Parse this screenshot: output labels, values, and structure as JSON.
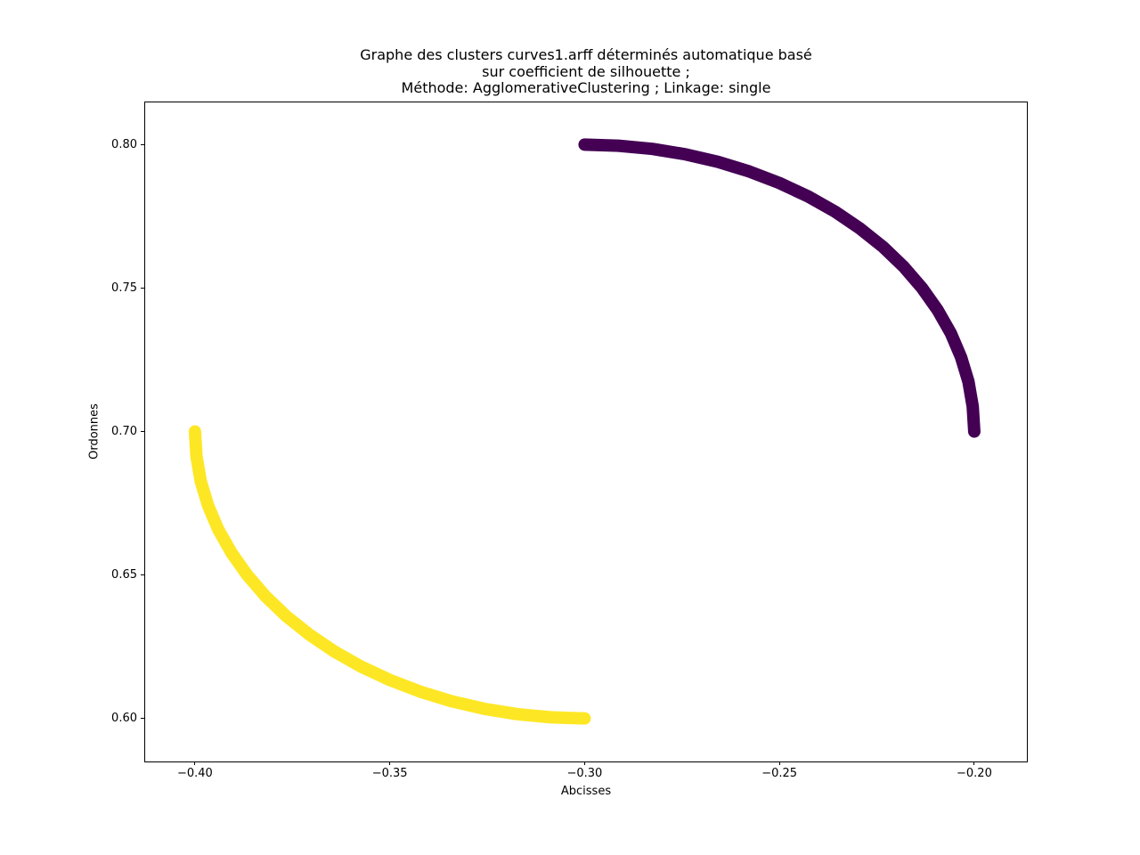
{
  "chart_data": {
    "type": "scatter",
    "title_lines": [
      "Graphe des clusters curves1.arff déterminés automatique basé",
      "sur coefficient de silhouette ;",
      "Méthode: AgglomerativeClustering ; Linkage: single"
    ],
    "title": "Graphe des clusters curves1.arff déterminés automatique basé\nsur coefficient de silhouette ;\nMéthode: AgglomerativeClustering ; Linkage: single",
    "xlabel": "Abcisses",
    "ylabel": "Ordonnes",
    "xlim": [
      -0.413,
      -0.1865
    ],
    "ylim": [
      0.585,
      0.815
    ],
    "x_ticks": {
      "values": [
        -0.4,
        -0.35,
        -0.3,
        -0.25,
        -0.2
      ],
      "labels": [
        "−0.40",
        "−0.35",
        "−0.30",
        "−0.25",
        "−0.20"
      ]
    },
    "y_ticks": {
      "values": [
        0.6,
        0.65,
        0.7,
        0.75,
        0.8
      ],
      "labels": [
        "0.60",
        "0.65",
        "0.70",
        "0.75",
        "0.80"
      ]
    },
    "grid": false,
    "legend": "none",
    "background_color": "#ffffff",
    "axes_color": "#000000",
    "text_color": "#000000",
    "marker_diameter_px": 14,
    "series": [
      {
        "name": "cluster-0-purple-arc",
        "color": "#440154",
        "description": "quarter-circle arc from (-0.30, 0.80) to (-0.20, 0.70)",
        "points": [
          [
            -0.3,
            0.8
          ],
          [
            -0.2913,
            0.7996
          ],
          [
            -0.2826,
            0.7985
          ],
          [
            -0.2741,
            0.7966
          ],
          [
            -0.2658,
            0.794
          ],
          [
            -0.2577,
            0.7906
          ],
          [
            -0.25,
            0.7866
          ],
          [
            -0.2426,
            0.7819
          ],
          [
            -0.2357,
            0.7766
          ],
          [
            -0.2293,
            0.7707
          ],
          [
            -0.2234,
            0.7643
          ],
          [
            -0.2181,
            0.7574
          ],
          [
            -0.2134,
            0.75
          ],
          [
            -0.2094,
            0.7423
          ],
          [
            -0.206,
            0.7342
          ],
          [
            -0.2034,
            0.7259
          ],
          [
            -0.2015,
            0.7174
          ],
          [
            -0.2004,
            0.7087
          ],
          [
            -0.2,
            0.7
          ]
        ]
      },
      {
        "name": "cluster-1-yellow-arc",
        "color": "#fde725",
        "description": "quarter-circle arc from (-0.40, 0.70) to (-0.30, 0.60)",
        "points": [
          [
            -0.4,
            0.7
          ],
          [
            -0.3996,
            0.6913
          ],
          [
            -0.3985,
            0.6826
          ],
          [
            -0.3966,
            0.6741
          ],
          [
            -0.394,
            0.6658
          ],
          [
            -0.3906,
            0.6577
          ],
          [
            -0.3866,
            0.65
          ],
          [
            -0.3819,
            0.6426
          ],
          [
            -0.3766,
            0.6357
          ],
          [
            -0.3707,
            0.6293
          ],
          [
            -0.3643,
            0.6234
          ],
          [
            -0.3574,
            0.6181
          ],
          [
            -0.35,
            0.6134
          ],
          [
            -0.3423,
            0.6094
          ],
          [
            -0.3342,
            0.606
          ],
          [
            -0.3259,
            0.6034
          ],
          [
            -0.3174,
            0.6015
          ],
          [
            -0.3087,
            0.6004
          ],
          [
            -0.3,
            0.6
          ]
        ]
      }
    ]
  }
}
